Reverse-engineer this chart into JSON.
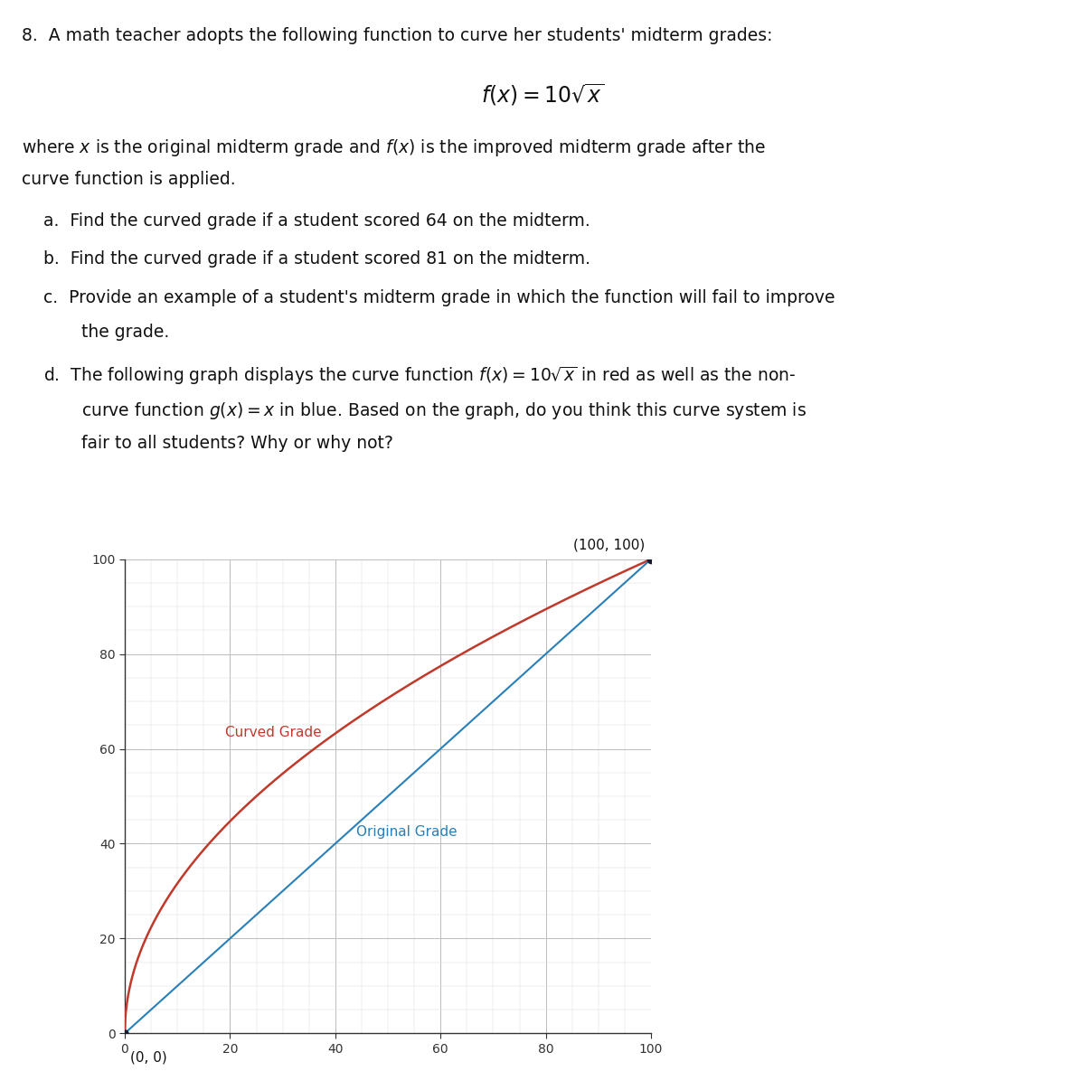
{
  "curve_color": "#c0392b",
  "linear_color": "#2980b9",
  "point_color": "#1a1a2e",
  "curved_label": "Curved Grade",
  "original_label": "Original Grade",
  "xlim": [
    0,
    100
  ],
  "ylim": [
    0,
    100
  ],
  "xticks": [
    0,
    20,
    40,
    60,
    80,
    100
  ],
  "yticks": [
    0,
    20,
    40,
    60,
    80,
    100
  ],
  "background_color": "#ffffff",
  "font_size_text": 13.5,
  "font_size_formula": 17,
  "font_size_graph_label": 11,
  "font_size_annotation": 11
}
